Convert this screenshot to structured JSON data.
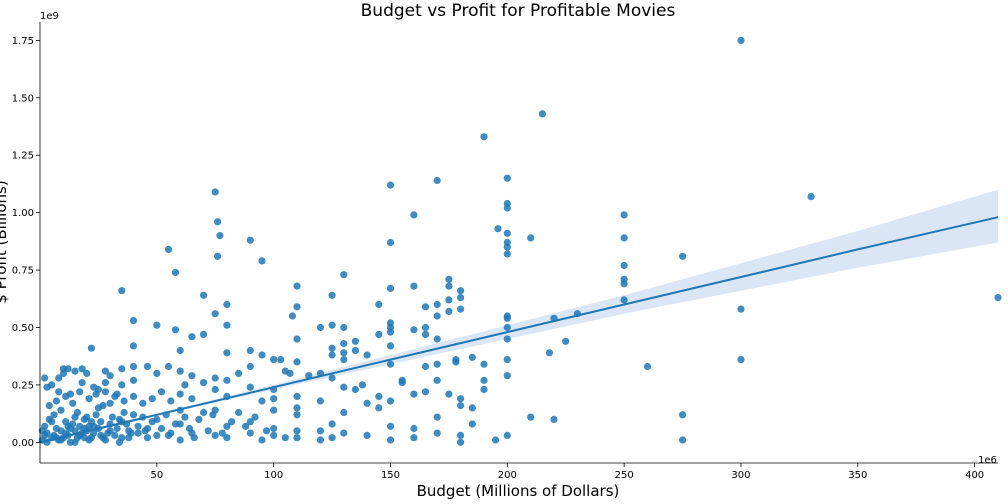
{
  "chart_data": {
    "type": "scatter",
    "title": "Budget vs Profit for Profitable Movies",
    "xlabel": "Budget (Millions of Dollars)",
    "ylabel": "$ Profit (Billions)",
    "x_offset_text": "1e6",
    "y_offset_text": "1e9",
    "xlim": [
      0,
      410
    ],
    "ylim": [
      -0.09,
      1.83
    ],
    "xticks": [
      50,
      100,
      150,
      200,
      250,
      300,
      350,
      400
    ],
    "xtick_labels": [
      "50",
      "100",
      "150",
      "200",
      "250",
      "300",
      "350",
      "400"
    ],
    "yticks": [
      0.0,
      0.25,
      0.5,
      0.75,
      1.0,
      1.25,
      1.5,
      1.75
    ],
    "ytick_labels": [
      "0.00",
      "0.25",
      "0.50",
      "0.75",
      "1.00",
      "1.25",
      "1.50",
      "1.75"
    ],
    "grid": false,
    "colors": {
      "points": "#1f77b4",
      "line": "#1f77b4",
      "band": "#aec7e8"
    },
    "regression": {
      "x": [
        0,
        50,
        100,
        150,
        200,
        250,
        300,
        350,
        410
      ],
      "y": [
        0.0,
        0.12,
        0.24,
        0.36,
        0.48,
        0.6,
        0.72,
        0.84,
        0.98
      ],
      "ci_lower": [
        -0.01,
        0.115,
        0.23,
        0.34,
        0.45,
        0.56,
        0.66,
        0.76,
        0.87
      ],
      "ci_upper": [
        0.012,
        0.125,
        0.25,
        0.38,
        0.51,
        0.64,
        0.78,
        0.92,
        1.1
      ]
    },
    "points": [
      [
        300,
        1.75
      ],
      [
        215,
        1.43
      ],
      [
        190,
        1.33
      ],
      [
        200,
        1.15
      ],
      [
        150,
        1.12
      ],
      [
        170,
        1.14
      ],
      [
        75,
        1.09
      ],
      [
        330,
        1.07
      ],
      [
        200,
        1.04
      ],
      [
        200,
        1.02
      ],
      [
        160,
        0.99
      ],
      [
        250,
        0.99
      ],
      [
        76,
        0.96
      ],
      [
        77,
        0.9
      ],
      [
        196,
        0.93
      ],
      [
        200,
        0.91
      ],
      [
        210,
        0.89
      ],
      [
        250,
        0.89
      ],
      [
        90,
        0.88
      ],
      [
        150,
        0.87
      ],
      [
        200,
        0.87
      ],
      [
        200,
        0.85
      ],
      [
        55,
        0.84
      ],
      [
        200,
        0.82
      ],
      [
        275,
        0.81
      ],
      [
        76,
        0.81
      ],
      [
        95,
        0.79
      ],
      [
        250,
        0.77
      ],
      [
        58,
        0.74
      ],
      [
        130,
        0.73
      ],
      [
        250,
        0.71
      ],
      [
        175,
        0.71
      ],
      [
        250,
        0.69
      ],
      [
        175,
        0.68
      ],
      [
        110,
        0.68
      ],
      [
        160,
        0.68
      ],
      [
        150,
        0.67
      ],
      [
        35,
        0.66
      ],
      [
        180,
        0.66
      ],
      [
        410,
        0.63
      ],
      [
        70,
        0.64
      ],
      [
        125,
        0.64
      ],
      [
        180,
        0.63
      ],
      [
        250,
        0.62
      ],
      [
        175,
        0.62
      ],
      [
        80,
        0.6
      ],
      [
        145,
        0.6
      ],
      [
        170,
        0.6
      ],
      [
        165,
        0.59
      ],
      [
        110,
        0.59
      ],
      [
        300,
        0.58
      ],
      [
        180,
        0.58
      ],
      [
        175,
        0.57
      ],
      [
        75,
        0.56
      ],
      [
        230,
        0.56
      ],
      [
        108,
        0.55
      ],
      [
        170,
        0.55
      ],
      [
        200,
        0.55
      ],
      [
        200,
        0.54
      ],
      [
        220,
        0.54
      ],
      [
        40,
        0.53
      ],
      [
        150,
        0.52
      ],
      [
        50,
        0.51
      ],
      [
        80,
        0.51
      ],
      [
        125,
        0.51
      ],
      [
        120,
        0.5
      ],
      [
        200,
        0.5
      ],
      [
        150,
        0.5
      ],
      [
        130,
        0.5
      ],
      [
        165,
        0.5
      ],
      [
        58,
        0.49
      ],
      [
        150,
        0.48
      ],
      [
        160,
        0.49
      ],
      [
        165,
        0.47
      ],
      [
        145,
        0.47
      ],
      [
        65,
        0.46
      ],
      [
        70,
        0.47
      ],
      [
        225,
        0.44
      ],
      [
        130,
        0.43
      ],
      [
        170,
        0.45
      ],
      [
        110,
        0.45
      ],
      [
        135,
        0.44
      ],
      [
        150,
        0.42
      ],
      [
        200,
        0.45
      ],
      [
        40,
        0.42
      ],
      [
        125,
        0.41
      ],
      [
        135,
        0.4
      ],
      [
        60,
        0.4
      ],
      [
        90,
        0.4
      ],
      [
        80,
        0.39
      ],
      [
        130,
        0.39
      ],
      [
        218,
        0.39
      ],
      [
        22,
        0.41
      ],
      [
        95,
        0.38
      ],
      [
        140,
        0.38
      ],
      [
        125,
        0.38
      ],
      [
        185,
        0.37
      ],
      [
        100,
        0.36
      ],
      [
        130,
        0.36
      ],
      [
        300,
        0.36
      ],
      [
        103,
        0.36
      ],
      [
        200,
        0.36
      ],
      [
        178,
        0.36
      ],
      [
        178,
        0.35
      ],
      [
        110,
        0.35
      ],
      [
        190,
        0.34
      ],
      [
        40,
        0.33
      ],
      [
        170,
        0.34
      ],
      [
        260,
        0.33
      ],
      [
        46,
        0.33
      ],
      [
        150,
        0.34
      ],
      [
        165,
        0.33
      ],
      [
        90,
        0.33
      ],
      [
        55,
        0.33
      ],
      [
        10,
        0.32
      ],
      [
        12,
        0.32
      ],
      [
        18,
        0.32
      ],
      [
        35,
        0.32
      ],
      [
        28,
        0.31
      ],
      [
        105,
        0.31
      ],
      [
        15,
        0.31
      ],
      [
        20,
        0.3
      ],
      [
        60,
        0.31
      ],
      [
        85,
        0.3
      ],
      [
        10,
        0.3
      ],
      [
        107,
        0.3
      ],
      [
        120,
        0.3
      ],
      [
        50,
        0.3
      ],
      [
        200,
        0.29
      ],
      [
        30,
        0.29
      ],
      [
        115,
        0.29
      ],
      [
        65,
        0.29
      ],
      [
        75,
        0.28
      ],
      [
        2,
        0.28
      ],
      [
        125,
        0.28
      ],
      [
        170,
        0.27
      ],
      [
        190,
        0.27
      ],
      [
        8,
        0.28
      ],
      [
        155,
        0.27
      ],
      [
        40,
        0.27
      ],
      [
        28,
        0.26
      ],
      [
        80,
        0.27
      ],
      [
        155,
        0.26
      ],
      [
        35,
        0.25
      ],
      [
        70,
        0.26
      ],
      [
        62,
        0.25
      ],
      [
        138,
        0.25
      ],
      [
        5,
        0.25
      ],
      [
        130,
        0.24
      ],
      [
        135,
        0.23
      ],
      [
        90,
        0.24
      ],
      [
        75,
        0.23
      ],
      [
        100,
        0.23
      ],
      [
        25,
        0.23
      ],
      [
        190,
        0.23
      ],
      [
        165,
        0.22
      ],
      [
        160,
        0.21
      ],
      [
        175,
        0.21
      ],
      [
        60,
        0.21
      ],
      [
        145,
        0.2
      ],
      [
        80,
        0.2
      ],
      [
        180,
        0.19
      ],
      [
        100,
        0.19
      ],
      [
        110,
        0.2
      ],
      [
        95,
        0.18
      ],
      [
        65,
        0.19
      ],
      [
        120,
        0.18
      ],
      [
        150,
        0.18
      ],
      [
        140,
        0.17
      ],
      [
        30,
        0.17
      ],
      [
        180,
        0.16
      ],
      [
        185,
        0.15
      ],
      [
        110,
        0.15
      ],
      [
        145,
        0.15
      ],
      [
        25,
        0.15
      ],
      [
        60,
        0.14
      ],
      [
        100,
        0.14
      ],
      [
        75,
        0.14
      ],
      [
        130,
        0.13
      ],
      [
        70,
        0.13
      ],
      [
        40,
        0.12
      ],
      [
        110,
        0.12
      ],
      [
        210,
        0.11
      ],
      [
        275,
        0.12
      ],
      [
        170,
        0.11
      ],
      [
        15,
        0.11
      ],
      [
        50,
        0.1
      ],
      [
        220,
        0.1
      ],
      [
        35,
        0.09
      ],
      [
        90,
        0.09
      ],
      [
        60,
        0.08
      ],
      [
        125,
        0.08
      ],
      [
        185,
        0.08
      ],
      [
        150,
        0.07
      ],
      [
        80,
        0.07
      ],
      [
        100,
        0.06
      ],
      [
        160,
        0.06
      ],
      [
        110,
        0.05
      ],
      [
        20,
        0.05
      ],
      [
        120,
        0.05
      ],
      [
        45,
        0.05
      ],
      [
        65,
        0.04
      ],
      [
        130,
        0.04
      ],
      [
        170,
        0.04
      ],
      [
        90,
        0.04
      ],
      [
        100,
        0.03
      ],
      [
        140,
        0.03
      ],
      [
        75,
        0.03
      ],
      [
        180,
        0.03
      ],
      [
        200,
        0.03
      ],
      [
        55,
        0.03
      ],
      [
        105,
        0.02
      ],
      [
        110,
        0.02
      ],
      [
        160,
        0.02
      ],
      [
        35,
        0.02
      ],
      [
        80,
        0.02
      ],
      [
        125,
        0.02
      ],
      [
        195,
        0.01
      ],
      [
        150,
        0.01
      ],
      [
        180,
        0.0
      ],
      [
        275,
        0.01
      ],
      [
        95,
        0.01
      ],
      [
        60,
        0.01
      ],
      [
        120,
        0.01
      ],
      [
        5,
        0.02
      ],
      [
        8,
        0.01
      ],
      [
        12,
        0.03
      ],
      [
        15,
        0.0
      ],
      [
        18,
        0.04
      ],
      [
        22,
        0.02
      ],
      [
        25,
        0.06
      ],
      [
        28,
        0.01
      ],
      [
        30,
        0.08
      ],
      [
        32,
        0.03
      ],
      [
        34,
        0.0
      ],
      [
        38,
        0.05
      ],
      [
        2,
        0.07
      ],
      [
        4,
        0.1
      ],
      [
        6,
        0.12
      ],
      [
        9,
        0.14
      ],
      [
        11,
        0.09
      ],
      [
        13,
        0.06
      ],
      [
        16,
        0.13
      ],
      [
        19,
        0.1
      ],
      [
        21,
        0.07
      ],
      [
        24,
        0.12
      ],
      [
        26,
        0.09
      ],
      [
        29,
        0.04
      ],
      [
        31,
        0.11
      ],
      [
        33,
        0.06
      ],
      [
        36,
        0.13
      ],
      [
        37,
        0.08
      ],
      [
        39,
        0.04
      ],
      [
        42,
        0.07
      ],
      [
        44,
        0.11
      ],
      [
        46,
        0.02
      ],
      [
        48,
        0.09
      ],
      [
        52,
        0.06
      ],
      [
        54,
        0.12
      ],
      [
        56,
        0.04
      ],
      [
        58,
        0.08
      ],
      [
        62,
        0.11
      ],
      [
        64,
        0.06
      ],
      [
        66,
        0.02
      ],
      [
        68,
        0.1
      ],
      [
        72,
        0.05
      ],
      [
        74,
        0.12
      ],
      [
        78,
        0.04
      ],
      [
        82,
        0.09
      ],
      [
        85,
        0.13
      ],
      [
        88,
        0.07
      ],
      [
        92,
        0.11
      ],
      [
        97,
        0.05
      ],
      [
        3,
        0.04
      ],
      [
        7,
        0.06
      ],
      [
        10,
        0.02
      ],
      [
        14,
        0.08
      ],
      [
        17,
        0.03
      ],
      [
        20,
        0.11
      ],
      [
        23,
        0.04
      ],
      [
        27,
        0.02
      ],
      [
        1,
        0.01
      ],
      [
        3,
        0.0
      ],
      [
        6,
        0.03
      ],
      [
        9,
        0.05
      ],
      [
        12,
        0.07
      ],
      [
        16,
        0.02
      ],
      [
        19,
        0.06
      ],
      [
        22,
        0.09
      ],
      [
        26,
        0.03
      ],
      [
        30,
        0.05
      ],
      [
        34,
        0.1
      ],
      [
        38,
        0.02
      ],
      [
        42,
        0.04
      ],
      [
        46,
        0.06
      ],
      [
        50,
        0.03
      ],
      [
        4,
        0.16
      ],
      [
        7,
        0.18
      ],
      [
        11,
        0.2
      ],
      [
        14,
        0.17
      ],
      [
        17,
        0.22
      ],
      [
        21,
        0.19
      ],
      [
        24,
        0.21
      ],
      [
        27,
        0.16
      ],
      [
        32,
        0.2
      ],
      [
        36,
        0.18
      ],
      [
        40,
        0.2
      ],
      [
        44,
        0.17
      ],
      [
        48,
        0.19
      ],
      [
        52,
        0.22
      ],
      [
        56,
        0.18
      ],
      [
        3,
        0.24
      ],
      [
        8,
        0.22
      ],
      [
        13,
        0.21
      ],
      [
        18,
        0.26
      ],
      [
        23,
        0.24
      ],
      [
        28,
        0.22
      ],
      [
        33,
        0.21
      ],
      [
        1,
        0.05
      ],
      [
        2,
        0.03
      ],
      [
        5,
        0.09
      ],
      [
        7,
        0.02
      ],
      [
        9,
        0.01
      ],
      [
        11,
        0.04
      ],
      [
        13,
        0.0
      ],
      [
        15,
        0.05
      ],
      [
        17,
        0.07
      ],
      [
        19,
        0.02
      ],
      [
        21,
        0.01
      ],
      [
        23,
        0.07
      ]
    ]
  }
}
